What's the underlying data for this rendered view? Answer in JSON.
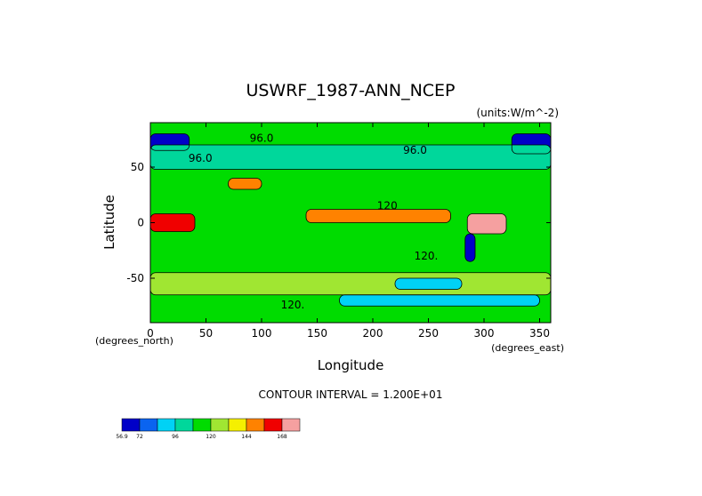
{
  "chart_data": {
    "type": "heatmap",
    "title": "USWRF_1987-ANN_NCEP",
    "units_label": "(units:W/m^-2)",
    "xlabel": "Longitude",
    "ylabel": "Latitude",
    "x_unit_label": "(degrees_east)",
    "y_unit_label": "(degrees_north)",
    "xlim": [
      0,
      360
    ],
    "ylim": [
      -90,
      90
    ],
    "x_ticks": [
      "0",
      "50",
      "100",
      "150",
      "200",
      "250",
      "300",
      "350"
    ],
    "x_tick_values": [
      0,
      50,
      100,
      150,
      200,
      250,
      300,
      350
    ],
    "y_ticks": [
      "50",
      "0",
      "-50"
    ],
    "y_tick_values": [
      50,
      0,
      -50
    ],
    "contour_interval_text": "CONTOUR INTERVAL = 1.200E+01",
    "contour_interval": 12,
    "contour_labels": [
      {
        "text": "96.0",
        "lon": 100,
        "lat": 73
      },
      {
        "text": "96.0",
        "lon": 45,
        "lat": 55
      },
      {
        "text": "96.0",
        "lon": 238,
        "lat": 62
      },
      {
        "text": "120",
        "lon": 213,
        "lat": 12
      },
      {
        "text": "120.",
        "lon": 248,
        "lat": -33
      },
      {
        "text": "120.",
        "lon": 128,
        "lat": -77
      }
    ],
    "colorbar": {
      "tick_labels": [
        "56.9",
        "72",
        "96",
        "120",
        "144",
        "168"
      ],
      "tick_values": [
        56.9,
        72,
        96,
        120,
        144,
        168
      ],
      "colors": [
        "#0000c8",
        "#0a64f0",
        "#00d2f5",
        "#00d79b",
        "#00dc00",
        "#a0e632",
        "#f5f000",
        "#ff8200",
        "#f00000",
        "#f5a0a0"
      ]
    },
    "regions": [
      {
        "name": "base",
        "lon": [
          0,
          360
        ],
        "lat": [
          -90,
          90
        ],
        "value": 110
      },
      {
        "name": "arctic-pacific",
        "lon": [
          0,
          35
        ],
        "lat": [
          65,
          80
        ],
        "value": 60
      },
      {
        "name": "arctic-atlantic",
        "lon": [
          325,
          360
        ],
        "lat": [
          62,
          80
        ],
        "value": 65
      },
      {
        "name": "north-band",
        "lon": [
          0,
          360
        ],
        "lat": [
          48,
          70
        ],
        "value": 96
      },
      {
        "name": "tibet",
        "lon": [
          70,
          100
        ],
        "lat": [
          30,
          40
        ],
        "value": 150
      },
      {
        "name": "itcz-pacific",
        "lon": [
          140,
          270
        ],
        "lat": [
          0,
          12
        ],
        "value": 145
      },
      {
        "name": "africa",
        "lon": [
          0,
          40
        ],
        "lat": [
          -8,
          8
        ],
        "value": 160
      },
      {
        "name": "amazon",
        "lon": [
          285,
          320
        ],
        "lat": [
          -10,
          8
        ],
        "value": 170
      },
      {
        "name": "andes",
        "lon": [
          283,
          292
        ],
        "lat": [
          -35,
          -10
        ],
        "value": 66
      },
      {
        "name": "southern-ocean",
        "lon": [
          0,
          360
        ],
        "lat": [
          -65,
          -45
        ],
        "value": 130
      },
      {
        "name": "antarctic-coast",
        "lon": [
          170,
          350
        ],
        "lat": [
          -75,
          -65
        ],
        "value": 90
      },
      {
        "name": "south-pacific-low",
        "lon": [
          220,
          280
        ],
        "lat": [
          -60,
          -50
        ],
        "value": 92
      }
    ]
  }
}
